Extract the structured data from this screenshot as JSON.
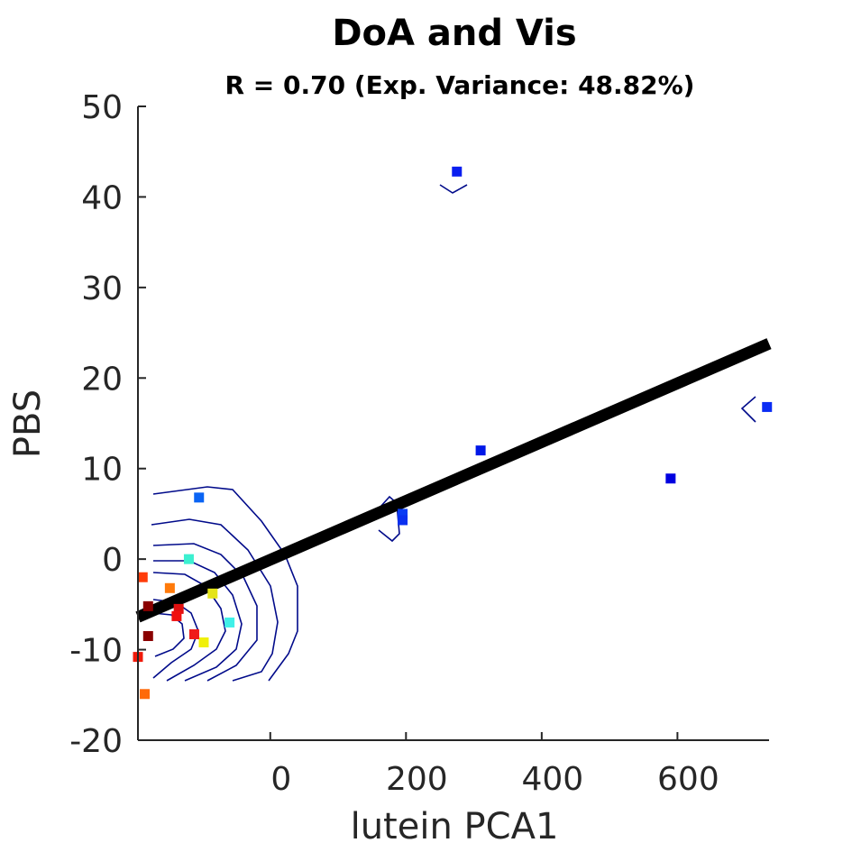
{
  "chart_data": {
    "type": "scatter",
    "title": "DoA and Vis",
    "subtitle": "R = 0.70 (Exp. Variance: 48.82%)",
    "xlabel": "lutein PCA1",
    "ylabel": "PBS",
    "xlim": [
      -195,
      735
    ],
    "ylim": [
      -20,
      50
    ],
    "x_ticks": [
      0,
      200,
      400,
      600
    ],
    "x_tick_labels": [
      "0",
      "200",
      "400",
      "600"
    ],
    "y_ticks": [
      -20,
      -10,
      0,
      10,
      20,
      30,
      40,
      50
    ],
    "y_tick_labels": [
      "-20",
      "-10",
      "0",
      "10",
      "20",
      "30",
      "40",
      "50"
    ],
    "grid": false,
    "legend": "none",
    "points": [
      {
        "x": 275,
        "y": 42.8,
        "color": "#0a1ef0"
      },
      {
        "x": 310,
        "y": 12.0,
        "color": "#0018e8"
      },
      {
        "x": 590,
        "y": 8.9,
        "color": "#0000e0"
      },
      {
        "x": 732,
        "y": 16.8,
        "color": "#0a2cf4"
      },
      {
        "x": 195,
        "y": 5.0,
        "color": "#0a3cf4"
      },
      {
        "x": 195,
        "y": 4.3,
        "color": "#0a30f0"
      },
      {
        "x": -105,
        "y": 6.8,
        "color": "#0a64f4"
      },
      {
        "x": -120,
        "y": 0.0,
        "color": "#3cf0d0"
      },
      {
        "x": -60,
        "y": -7.0,
        "color": "#40f0e8"
      },
      {
        "x": -85,
        "y": -3.8,
        "color": "#e4e41a"
      },
      {
        "x": -98,
        "y": -9.2,
        "color": "#f0f00a"
      },
      {
        "x": -148,
        "y": -3.2,
        "color": "#ff7a0a"
      },
      {
        "x": -135,
        "y": -5.5,
        "color": "#e01010"
      },
      {
        "x": -138,
        "y": -6.3,
        "color": "#f01010"
      },
      {
        "x": -112,
        "y": -8.3,
        "color": "#f01a1a"
      },
      {
        "x": -188,
        "y": -2.0,
        "color": "#ff3c0a"
      },
      {
        "x": -180,
        "y": -5.2,
        "color": "#8a0000"
      },
      {
        "x": -180,
        "y": -8.5,
        "color": "#8a0000"
      },
      {
        "x": -195,
        "y": -10.8,
        "color": "#f01a0a"
      },
      {
        "x": -185,
        "y": -14.9,
        "color": "#ff6a0a"
      }
    ],
    "fit_line": {
      "x": [
        -195,
        735
      ],
      "y": [
        -6.4,
        23.8
      ],
      "color": "#000000"
    },
    "contour_color": "#000a8a"
  }
}
